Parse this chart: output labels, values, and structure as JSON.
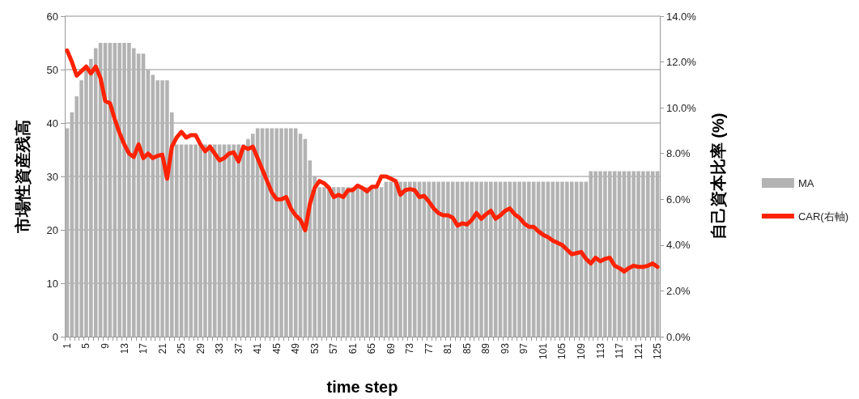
{
  "chart_data": {
    "type": "bar",
    "xlabel": "time step",
    "ylabel": "市場性資産残高",
    "y2label": "自己資本比率 (%)",
    "categories": [
      "1",
      null,
      null,
      null,
      "5",
      null,
      null,
      null,
      "9",
      null,
      null,
      null,
      "13",
      null,
      null,
      null,
      "17",
      null,
      null,
      null,
      "21",
      null,
      null,
      null,
      "25",
      null,
      null,
      null,
      "29",
      null,
      null,
      null,
      "33",
      null,
      null,
      null,
      "37",
      null,
      null,
      null,
      "41",
      null,
      null,
      null,
      "45",
      null,
      null,
      null,
      "49",
      null,
      null,
      null,
      "53",
      null,
      null,
      null,
      "57",
      null,
      null,
      null,
      "61",
      null,
      null,
      null,
      "65",
      null,
      null,
      null,
      "69",
      null,
      null,
      null,
      "73",
      null,
      null,
      null,
      "77",
      null,
      null,
      null,
      "81",
      null,
      null,
      null,
      "85",
      null,
      null,
      null,
      "89",
      null,
      null,
      null,
      "93",
      null,
      null,
      null,
      "97",
      null,
      null,
      null,
      "101",
      null,
      null,
      null,
      "105",
      null,
      null,
      null,
      "109",
      null,
      null,
      null,
      "113",
      null,
      null,
      null,
      "117",
      null,
      null,
      null,
      "121",
      null,
      null,
      null,
      "125"
    ],
    "series": [
      {
        "name": "MA",
        "color": "#b3b3b3",
        "values": [
          39,
          42,
          45,
          48,
          50,
          52,
          54,
          55,
          55,
          55,
          55,
          55,
          55,
          55,
          54,
          53,
          53,
          50,
          49,
          48,
          48,
          48,
          42,
          36,
          36,
          36,
          36,
          36,
          36,
          36,
          36,
          36,
          36,
          36,
          36,
          36,
          36,
          36,
          37,
          38,
          39,
          39,
          39,
          39,
          39,
          39,
          39,
          39,
          39,
          38,
          37,
          33,
          30,
          28,
          28,
          28,
          28,
          28,
          28,
          28,
          28,
          28,
          28,
          28,
          28,
          28,
          28,
          29,
          29,
          29,
          29,
          29,
          29,
          29,
          29,
          29,
          29,
          29,
          29,
          29,
          29,
          29,
          29,
          29,
          29,
          29,
          29,
          29,
          29,
          29,
          29,
          29,
          29,
          29,
          29,
          29,
          29,
          29,
          29,
          29,
          29,
          29,
          29,
          29,
          29,
          29,
          29,
          29,
          29,
          29,
          31,
          31,
          31,
          31,
          31,
          31,
          31,
          31,
          31,
          31,
          31,
          31,
          31,
          31,
          31
        ]
      },
      {
        "name": "CAR(右軸)",
        "type": "line",
        "axis": "y2",
        "color": "#ff2200",
        "values": [
          12.5,
          12.0,
          11.4,
          11.6,
          11.8,
          11.5,
          11.8,
          11.3,
          10.3,
          10.2,
          9.5,
          8.9,
          8.4,
          8.0,
          7.85,
          8.4,
          7.8,
          8.0,
          7.8,
          7.9,
          7.95,
          6.9,
          8.3,
          8.7,
          8.95,
          8.7,
          8.8,
          8.8,
          8.4,
          8.1,
          8.3,
          8.0,
          7.7,
          7.8,
          8.0,
          8.05,
          7.65,
          8.3,
          8.2,
          8.3,
          7.8,
          7.3,
          6.8,
          6.3,
          6.0,
          6.0,
          6.1,
          5.6,
          5.3,
          5.1,
          4.65,
          5.8,
          6.5,
          6.8,
          6.7,
          6.5,
          6.1,
          6.2,
          6.1,
          6.4,
          6.4,
          6.6,
          6.5,
          6.35,
          6.55,
          6.55,
          7.0,
          7.0,
          6.9,
          6.8,
          6.2,
          6.4,
          6.45,
          6.4,
          6.1,
          6.15,
          5.9,
          5.6,
          5.4,
          5.3,
          5.3,
          5.2,
          4.85,
          4.95,
          4.9,
          5.1,
          5.4,
          5.15,
          5.35,
          5.5,
          5.15,
          5.3,
          5.5,
          5.6,
          5.35,
          5.2,
          4.95,
          4.8,
          4.8,
          4.6,
          4.45,
          4.35,
          4.2,
          4.1,
          4.0,
          3.8,
          3.6,
          3.65,
          3.7,
          3.4,
          3.2,
          3.45,
          3.3,
          3.4,
          3.45,
          3.1,
          3.0,
          2.85,
          3.0,
          3.1,
          3.05,
          3.05,
          3.1,
          3.2,
          3.05
        ]
      }
    ],
    "ylim": [
      0,
      60
    ],
    "yticks": [
      0,
      10,
      20,
      30,
      40,
      50,
      60
    ],
    "y2lim": [
      0,
      14
    ],
    "y2ticks": [
      {
        "value": 0,
        "label": "0.0%"
      },
      {
        "value": 2,
        "label": "2.0%"
      },
      {
        "value": 4,
        "label": "4.0%"
      },
      {
        "value": 6,
        "label": "6.0%"
      },
      {
        "value": 8,
        "label": "8.0%"
      },
      {
        "value": 10,
        "label": "10.0%"
      },
      {
        "value": 12,
        "label": "12.0%"
      },
      {
        "value": 14,
        "label": "14.0%"
      }
    ],
    "grid": "y",
    "legend": "right",
    "marker": "none",
    "line_style": "solid"
  }
}
